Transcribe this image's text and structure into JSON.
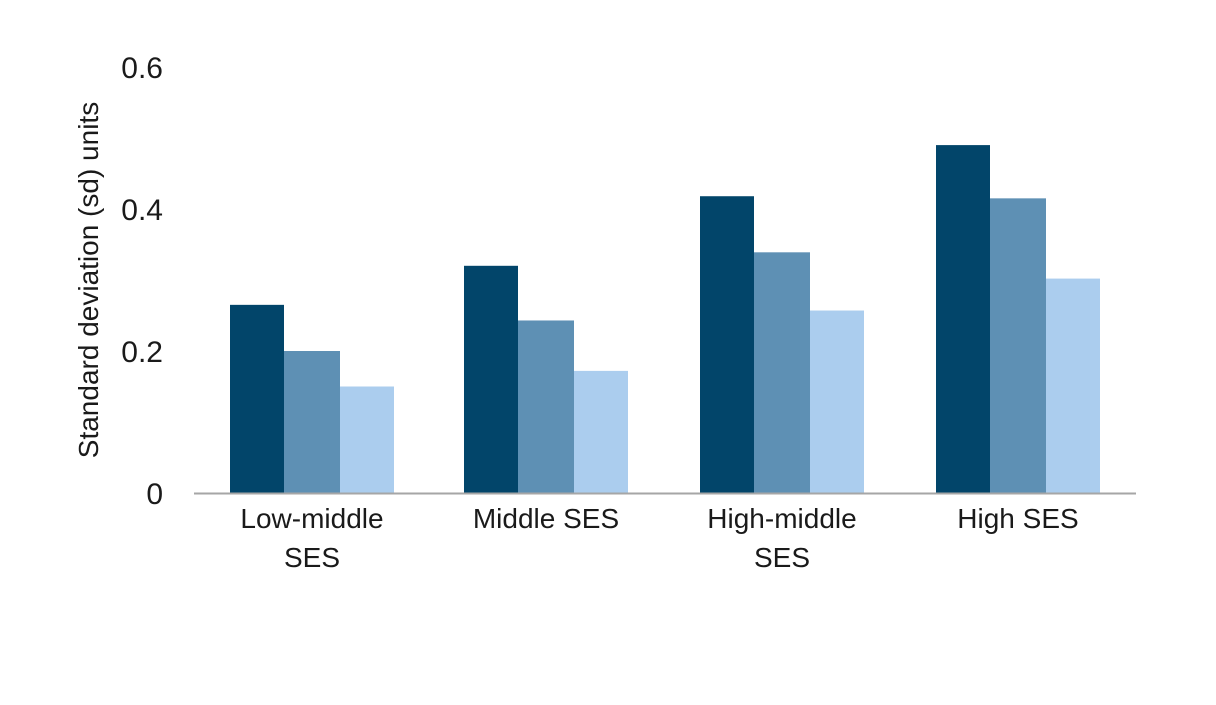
{
  "colors": {
    "series": [
      "#02456a",
      "#5e90b4",
      "#abcdee"
    ],
    "axis": "#a6a6a6",
    "text": "#1a1a1a"
  },
  "chart_data": {
    "type": "bar",
    "title": "",
    "xlabel": "",
    "ylabel": "Standard deviation (sd) units",
    "ylim": [
      0,
      0.6
    ],
    "yticks": [
      0,
      0.2,
      0.4,
      0.6
    ],
    "ytick_labels": [
      "0",
      "0.2",
      "0.4",
      "0.6"
    ],
    "grid": false,
    "legend": "none",
    "categories": [
      [
        "Low-middle",
        "SES"
      ],
      [
        "Middle SES"
      ],
      [
        "High-middle",
        "SES"
      ],
      [
        "High SES"
      ]
    ],
    "series": [
      {
        "values": [
          0.265,
          0.32,
          0.418,
          0.49
        ]
      },
      {
        "values": [
          0.2,
          0.243,
          0.339,
          0.415
        ]
      },
      {
        "values": [
          0.15,
          0.172,
          0.257,
          0.302
        ]
      }
    ]
  }
}
